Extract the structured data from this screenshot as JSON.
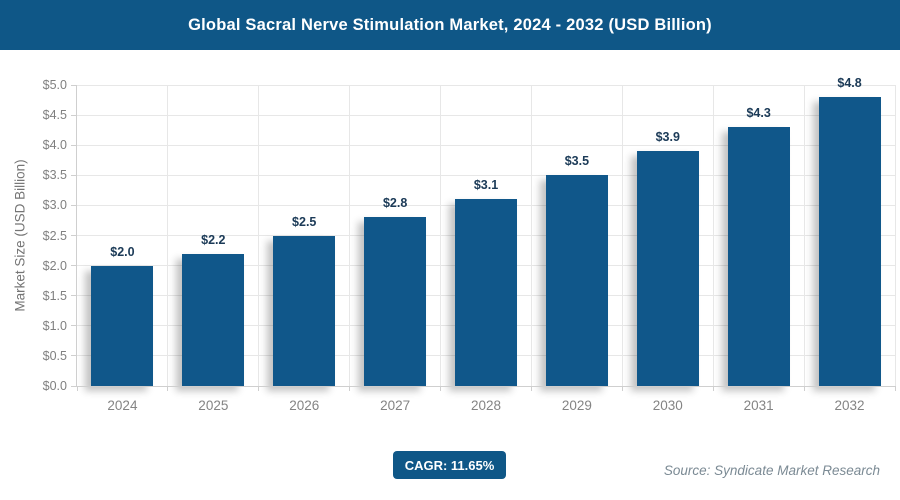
{
  "header": {
    "title": "Global Sacral Nerve Stimulation Market, 2024 - 2032 (USD Billion)"
  },
  "chart_data": {
    "type": "bar",
    "title": "Global Sacral Nerve Stimulation Market, 2024 - 2032 (USD Billion)",
    "categories": [
      "2024",
      "2025",
      "2026",
      "2027",
      "2028",
      "2029",
      "2030",
      "2031",
      "2032"
    ],
    "values": [
      2.0,
      2.2,
      2.5,
      2.8,
      3.1,
      3.5,
      3.9,
      4.3,
      4.8
    ],
    "bar_labels": [
      "$2.0",
      "$2.2",
      "$2.5",
      "$2.8",
      "$3.1",
      "$3.5",
      "$3.9",
      "$4.3",
      "$4.8"
    ],
    "xlabel": "",
    "ylabel": "Market Size (USD Billion)",
    "ylim": [
      0,
      5.0
    ],
    "ytick_step": 0.5,
    "ytick_labels": [
      "$0.0",
      "$0.5",
      "$1.0",
      "$1.5",
      "$2.0",
      "$2.5",
      "$3.0",
      "$3.5",
      "$4.0",
      "$4.5",
      "$5.0"
    ],
    "grid": true,
    "legend": false
  },
  "footer": {
    "cagr_label": "CAGR: 11.65%",
    "source": "Source: Syndicate Market Research"
  },
  "colors": {
    "banner_bg": "#0f5787",
    "bar_fill": "#10578a",
    "badge_bg": "#0f5787",
    "bar_label_text": "#1b3a57",
    "axis_text": "#808080",
    "grid_line": "#e7e7e7",
    "source_text": "#7b8a94"
  }
}
